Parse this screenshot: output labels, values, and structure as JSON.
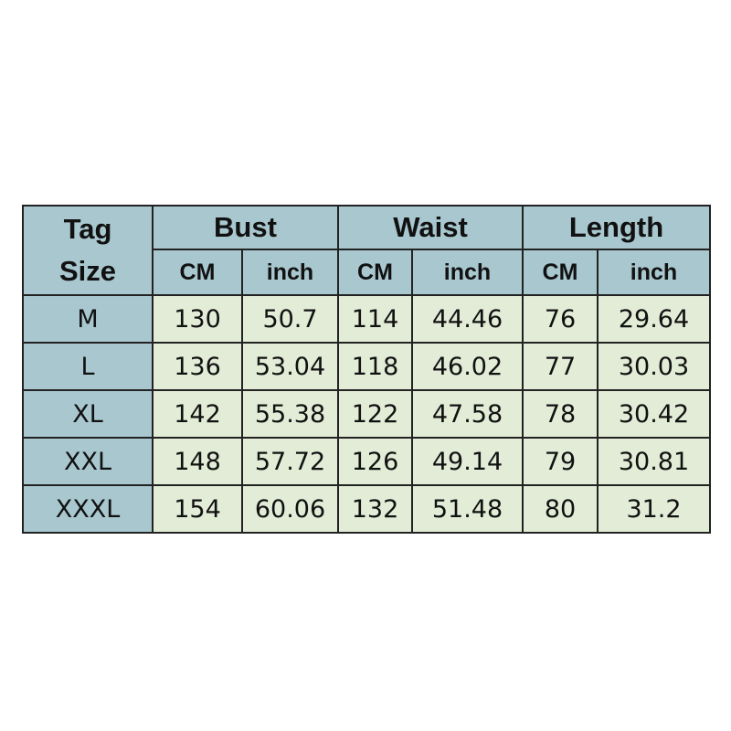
{
  "header": {
    "tag_size": [
      "Tag",
      "Size"
    ],
    "groups": [
      "Bust",
      "Waist",
      "Length"
    ],
    "units": [
      "CM",
      "inch",
      "CM",
      "inch",
      "CM",
      "inch"
    ]
  },
  "rows": [
    {
      "size": "M",
      "values": [
        "130",
        "50.7",
        "114",
        "44.46",
        "76",
        "29.64"
      ]
    },
    {
      "size": "L",
      "values": [
        "136",
        "53.04",
        "118",
        "46.02",
        "77",
        "30.03"
      ]
    },
    {
      "size": "XL",
      "values": [
        "142",
        "55.38",
        "122",
        "47.58",
        "78",
        "30.42"
      ]
    },
    {
      "size": "XXL",
      "values": [
        "148",
        "57.72",
        "126",
        "49.14",
        "79",
        "30.81"
      ]
    },
    {
      "size": "XXXL",
      "values": [
        "154",
        "60.06",
        "132",
        "51.48",
        "80",
        "31.2"
      ]
    }
  ],
  "colors": {
    "header": "#a8c7cf",
    "cells": "#e2ecd6"
  }
}
